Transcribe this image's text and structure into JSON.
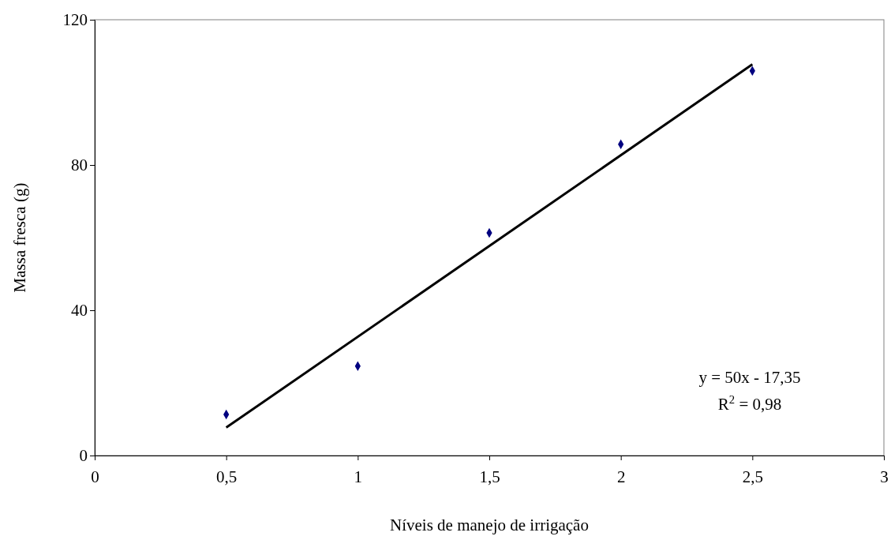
{
  "chart_data": {
    "type": "scatter",
    "xlabel": "Níveis de manejo de irrigação",
    "ylabel": "Massa fresca (g)",
    "xlim": [
      0,
      3
    ],
    "xticks": [
      0,
      {
        "value": 0.5,
        "label": "0,5"
      },
      1,
      {
        "value": 1.5,
        "label": "1,5"
      },
      2,
      {
        "value": 2.5,
        "label": "2,5"
      },
      3
    ],
    "ylim": [
      0,
      120
    ],
    "yticks": [
      0,
      40,
      80,
      120
    ],
    "grid": false,
    "series": [
      {
        "color": "#000080",
        "marker": "diamond",
        "x": [
          0.5,
          1,
          1.5,
          2,
          2.5
        ],
        "values": [
          11.3,
          24.6,
          61.3,
          85.7,
          105.9
        ]
      },
      {
        "type": "line",
        "color": "#000000",
        "x": [
          0.5,
          2.5
        ],
        "values": [
          7.7,
          107.7
        ],
        "line_style": "solid"
      }
    ],
    "annotations": [
      "y = 50x - 17,35",
      "R$^{2}$ = 0,98"
    ]
  }
}
